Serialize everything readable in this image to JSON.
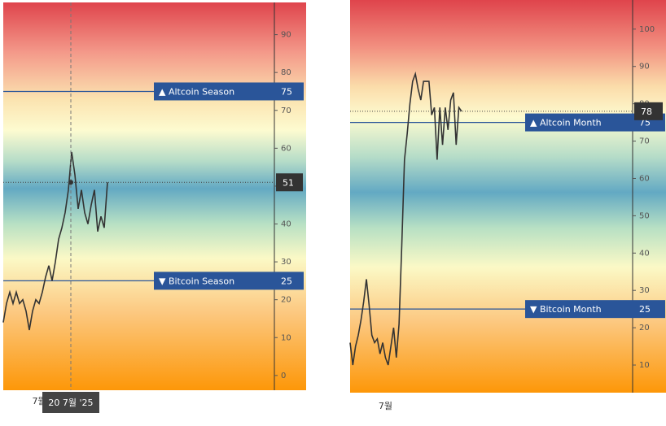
{
  "chart_data": [
    {
      "type": "line",
      "categories": [
        null,
        null,
        null,
        null,
        null,
        null,
        null,
        null,
        null,
        null,
        null,
        "7월",
        null,
        null,
        null,
        null,
        null,
        null,
        null,
        null,
        null,
        null,
        null,
        null,
        null,
        null,
        null,
        null,
        null,
        null,
        null,
        null,
        null
      ],
      "series": [
        {
          "color": "#333333",
          "values": [
            14,
            19,
            22,
            19,
            22,
            19,
            20,
            17,
            12,
            17,
            20,
            19,
            22,
            26,
            29,
            25,
            30,
            36,
            39,
            43,
            49,
            59,
            53,
            44,
            49,
            43,
            40,
            45,
            49,
            38,
            42,
            39,
            51
          ]
        }
      ],
      "ylim": [
        -3.9,
        98.5
      ],
      "yticks": [
        0,
        10,
        20,
        30,
        40,
        50,
        60,
        70,
        80,
        90
      ],
      "levels": [
        {
          "label": "▲ Altcoin Season",
          "value": 75,
          "color": "#2a5599"
        },
        {
          "label": "▼ Bitcoin Season",
          "value": 25,
          "color": "#2a5599"
        }
      ],
      "last_value": 51,
      "crosshair_label": "20 7월 '25"
    },
    {
      "type": "line",
      "categories": [
        null,
        null,
        null,
        null,
        null,
        null,
        null,
        null,
        null,
        null,
        null,
        null,
        null,
        "7월",
        null,
        null,
        null,
        null,
        null,
        null,
        null,
        null,
        null,
        null,
        null,
        null,
        null,
        null,
        null,
        null,
        null,
        null,
        null,
        null,
        null,
        null,
        null,
        null,
        null,
        null,
        null,
        null
      ],
      "series": [
        {
          "color": "#333333",
          "values": [
            16,
            10,
            15,
            18,
            22,
            27,
            33,
            26,
            18,
            16,
            17,
            13,
            16,
            12,
            10,
            15,
            20,
            12,
            21,
            42,
            65,
            72,
            80,
            86,
            88,
            84,
            81,
            86,
            86,
            86,
            77,
            79,
            65,
            79,
            69,
            79,
            73,
            81,
            83,
            69,
            79,
            78
          ]
        }
      ],
      "ylim": [
        2.6,
        107.8
      ],
      "yticks": [
        10,
        20,
        30,
        40,
        50,
        60,
        70,
        80,
        90,
        100
      ],
      "levels": [
        {
          "label": "▲ Altcoin Month",
          "value": 75,
          "color": "#2a5599"
        },
        {
          "label": "▼ Bitcoin Month",
          "value": 25,
          "color": "#2a5599"
        }
      ],
      "last_value": 78
    }
  ]
}
